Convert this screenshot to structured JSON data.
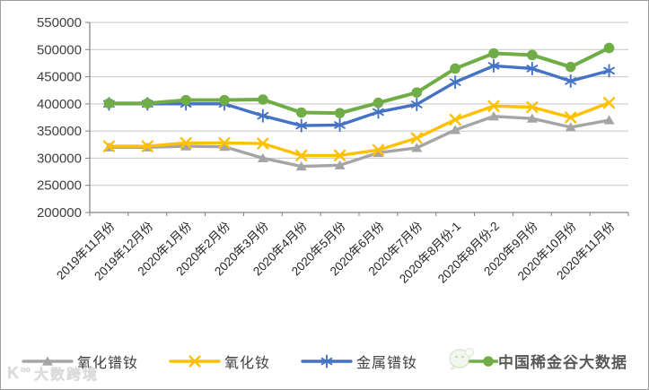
{
  "chart_data": {
    "type": "line",
    "title": "",
    "xlabel": "",
    "ylabel": "",
    "ylim": [
      200000,
      550000
    ],
    "y_tick_step": 50000,
    "y_ticks": [
      "550000",
      "500000",
      "450000",
      "400000",
      "350000",
      "300000",
      "250000",
      "200000"
    ],
    "grid": true,
    "legend_position": "bottom",
    "categories": [
      "2019年11月份",
      "2019年12月份",
      "2020年1月份",
      "2020年2月份",
      "2020年3月份",
      "2020年4月份",
      "2020年5月份",
      "2020年6月份",
      "2020年7月份",
      "2020年8月份-1",
      "2020年8月份-2",
      "2020年9月份",
      "2020年10月份",
      "2020年11月份"
    ],
    "series": [
      {
        "name": "氧化镨钕",
        "color": "#a5a5a5",
        "marker": "triangle",
        "values": [
          320000,
          320000,
          322000,
          321000,
          300000,
          285000,
          287000,
          310000,
          319000,
          352000,
          377000,
          373000,
          357000,
          370000
        ]
      },
      {
        "name": "氧化钕",
        "color": "#ffc000",
        "marker": "x",
        "values": [
          322000,
          322000,
          328000,
          328000,
          327000,
          305000,
          305000,
          315000,
          337000,
          371000,
          396000,
          394000,
          375000,
          402000
        ]
      },
      {
        "name": "金属镨钕",
        "color": "#4472c4",
        "marker": "asterisk",
        "values": [
          400000,
          400000,
          400000,
          400000,
          378000,
          360000,
          361000,
          385000,
          399000,
          440000,
          470000,
          465000,
          442000,
          461000
        ]
      },
      {
        "name": "中国稀金谷大数据",
        "label_obscured_by_watermark": true,
        "color": "#70ad47",
        "marker": "circle",
        "values": [
          401000,
          401000,
          407000,
          407000,
          408000,
          384000,
          383000,
          402000,
          421000,
          465000,
          493000,
          490000,
          468000,
          503000
        ]
      }
    ]
  },
  "legend": {
    "items": [
      {
        "label": "氧化镨钕"
      },
      {
        "label": "氧化钕"
      },
      {
        "label": "金属镨钕"
      },
      {
        "label": "中国稀金谷大数据"
      }
    ]
  },
  "watermarks": {
    "legend_overlay": "中国稀金谷大数据",
    "bottom_left": "大数跨境"
  }
}
